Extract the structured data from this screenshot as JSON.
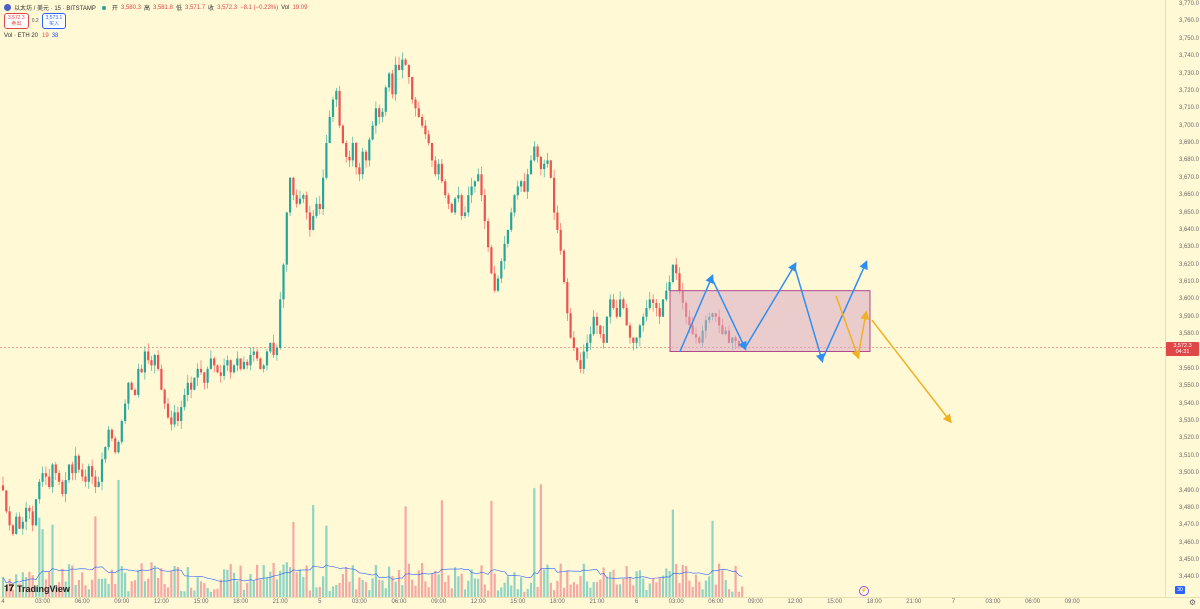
{
  "header": {
    "symbol": "以太坊 / 美元 · 15 · BITSTAMP",
    "open_label": "开",
    "open": "3,580.3",
    "high_label": "高",
    "high": "3,581.8",
    "low_label": "低",
    "low": "3,571.7",
    "close_label": "收",
    "close": "3,572.3",
    "change": "−8.1 (−0.23%)",
    "vol_label": "Vol",
    "vol": "19.09"
  },
  "trade": {
    "sell_price": "3,572.3",
    "sell_label": "卖出",
    "spread": "0.2",
    "buy_price": "3,573.1",
    "buy_label": "买入"
  },
  "volume_indicator": {
    "label": "Vol · ETH 20",
    "value1": "19",
    "value2": "38"
  },
  "price_tag": {
    "price": "3,572.3",
    "countdown": "04:31"
  },
  "brand": "TradingView",
  "axis_badge": "30",
  "colors": {
    "up": "#26a69a",
    "down": "#ef5350",
    "box_fill": "#d9a7c7",
    "box_stroke": "#b04a8a",
    "arrow_blue": "#2f8ff0",
    "arrow_orange": "#f0b020"
  },
  "chart_data": {
    "type": "candlestick",
    "symbol": "以太坊 / 美元",
    "interval": "15",
    "exchange": "BITSTAMP",
    "price_ticks": [
      "3,770.0",
      "3,760.0",
      "3,750.0",
      "3,740.0",
      "3,730.0",
      "3,720.0",
      "3,710.0",
      "3,700.0",
      "3,690.0",
      "3,680.0",
      "3,670.0",
      "3,660.0",
      "3,650.0",
      "3,640.0",
      "3,630.0",
      "3,620.0",
      "3,610.0",
      "3,600.0",
      "3,590.0",
      "3,580.0",
      "3,570.0",
      "3,560.0",
      "3,550.0",
      "3,540.0",
      "3,530.0",
      "3,520.0",
      "3,510.0",
      "3,500.0",
      "3,490.0",
      "3,480.0",
      "3,470.0",
      "3,460.0",
      "3,450.0",
      "3,440.0"
    ],
    "price_tick_values": [
      3770,
      3760,
      3750,
      3740,
      3730,
      3720,
      3710,
      3700,
      3690,
      3680,
      3670,
      3660,
      3650,
      3640,
      3630,
      3620,
      3610,
      3600,
      3590,
      3580,
      3570,
      3560,
      3550,
      3540,
      3530,
      3520,
      3510,
      3500,
      3490,
      3480,
      3470,
      3460,
      3450,
      3440
    ],
    "time_ticks": [
      "4",
      "03:00",
      "06:00",
      "09:00",
      "12:00",
      "15:00",
      "18:00",
      "21:00",
      "5",
      "03:00",
      "06:00",
      "09:00",
      "12:00",
      "15:00",
      "18:00",
      "21:00",
      "6",
      "03:00",
      "06:00",
      "09:00",
      "12:00",
      "15:00",
      "18:00",
      "21:00",
      "7",
      "03:00",
      "06:00",
      "09:00"
    ],
    "time_tick_index": [
      0,
      12,
      24,
      36,
      48,
      60,
      72,
      84,
      96,
      108,
      120,
      132,
      144,
      156,
      168,
      180,
      192,
      204,
      216,
      228,
      240,
      252,
      264,
      276,
      288,
      300,
      312,
      324
    ],
    "closes": [
      3490,
      3478,
      3470,
      3465,
      3475,
      3468,
      3472,
      3480,
      3478,
      3470,
      3485,
      3495,
      3500,
      3498,
      3492,
      3505,
      3500,
      3495,
      3488,
      3496,
      3505,
      3500,
      3510,
      3502,
      3498,
      3495,
      3504,
      3498,
      3492,
      3495,
      3508,
      3515,
      3525,
      3520,
      3512,
      3518,
      3530,
      3540,
      3552,
      3548,
      3545,
      3560,
      3558,
      3570,
      3565,
      3562,
      3568,
      3560,
      3548,
      3540,
      3532,
      3528,
      3535,
      3530,
      3538,
      3545,
      3552,
      3548,
      3555,
      3560,
      3558,
      3552,
      3560,
      3566,
      3562,
      3558,
      3556,
      3562,
      3565,
      3558,
      3562,
      3566,
      3560,
      3564,
      3562,
      3568,
      3570,
      3566,
      3560,
      3562,
      3570,
      3575,
      3568,
      3572,
      3600,
      3620,
      3650,
      3670,
      3660,
      3655,
      3658,
      3660,
      3650,
      3640,
      3648,
      3655,
      3652,
      3670,
      3690,
      3705,
      3715,
      3720,
      3700,
      3690,
      3682,
      3680,
      3690,
      3676,
      3672,
      3685,
      3680,
      3692,
      3700,
      3710,
      3705,
      3708,
      3722,
      3730,
      3718,
      3735,
      3732,
      3738,
      3735,
      3728,
      3715,
      3710,
      3705,
      3700,
      3695,
      3690,
      3680,
      3672,
      3678,
      3668,
      3660,
      3655,
      3650,
      3658,
      3660,
      3648,
      3650,
      3660,
      3665,
      3668,
      3672,
      3660,
      3645,
      3630,
      3615,
      3605,
      3612,
      3622,
      3632,
      3640,
      3650,
      3660,
      3665,
      3668,
      3662,
      3672,
      3680,
      3688,
      3682,
      3675,
      3678,
      3680,
      3670,
      3650,
      3640,
      3628,
      3610,
      3592,
      3578,
      3572,
      3565,
      3560,
      3570,
      3575,
      3580,
      3590,
      3585,
      3580,
      3575,
      3590,
      3600,
      3595,
      3590,
      3600,
      3595,
      3585,
      3578,
      3575,
      3578,
      3585,
      3590,
      3595,
      3600,
      3598,
      3595,
      3590,
      3600,
      3605,
      3610,
      3620,
      3615,
      3605,
      3598,
      3590,
      3585,
      3580,
      3578,
      3575,
      3582,
      3588,
      3590,
      3592,
      3590,
      3585,
      3580,
      3582,
      3575,
      3578,
      3576,
      3573,
      3572.3
    ],
    "volume_note": "Volume histogram shown beneath price with a 20-period moving average line.",
    "annotations": [
      {
        "type": "rectangle",
        "price_top": 3605,
        "price_bottom": 3570
      },
      {
        "type": "arrow",
        "color": "blue",
        "from_price": 3570,
        "to_price": 3613
      },
      {
        "type": "arrow",
        "color": "blue",
        "from_price": 3612,
        "to_price": 3572
      },
      {
        "type": "arrow",
        "color": "blue",
        "from_price": 3572,
        "to_price": 3620
      },
      {
        "type": "arrow",
        "color": "blue",
        "from_price": 3618,
        "to_price": 3565
      },
      {
        "type": "arrow",
        "color": "blue",
        "from_price": 3565,
        "to_price": 3621
      },
      {
        "type": "arrow",
        "color": "orange",
        "from_price": 3602,
        "to_price": 3567
      },
      {
        "type": "arrow",
        "color": "orange",
        "from_price": 3567,
        "to_price": 3592
      },
      {
        "type": "arrow",
        "color": "orange",
        "from_price": 3588,
        "to_price": 3530
      }
    ]
  }
}
